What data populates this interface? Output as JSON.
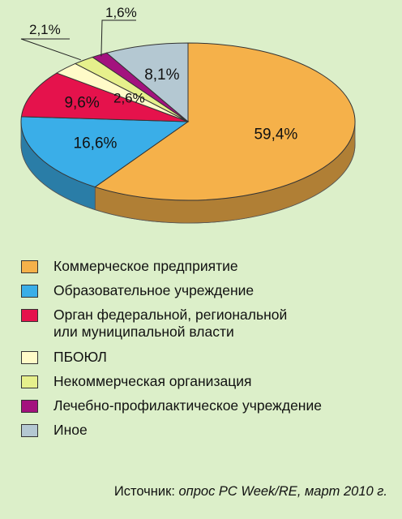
{
  "chart_data": {
    "type": "pie",
    "style": "3d",
    "slices": [
      {
        "label": "Коммерческое предприятие",
        "value": 59.4,
        "display": "59,4%",
        "color": "#f5b14a"
      },
      {
        "label": "Образовательное учреждение",
        "value": 16.6,
        "display": "16,6%",
        "color": "#3aaee8"
      },
      {
        "label": "Орган федеральной, региональной или муниципальной власти",
        "value": 9.6,
        "display": "9,6%",
        "color": "#e5124c"
      },
      {
        "label": "ПБОЮЛ",
        "value": 2.6,
        "display": "2,6%",
        "color": "#fffbc8"
      },
      {
        "label": "Некоммерческая организация",
        "value": 2.1,
        "display": "2,1%",
        "color": "#e6f08c"
      },
      {
        "label": "Лечебно-профилактическое учреждение",
        "value": 1.6,
        "display": "1,6%",
        "color": "#a3127e"
      },
      {
        "label": "Иное",
        "value": 8.1,
        "display": "8,1%",
        "color": "#b4c8d2"
      }
    ],
    "legend_placement": "bottom"
  },
  "legend": [
    {
      "lines": [
        "Коммерческое предприятие"
      ],
      "color": "#f5b14a"
    },
    {
      "lines": [
        "Образовательное учреждение"
      ],
      "color": "#3aaee8"
    },
    {
      "lines": [
        "Орган федеральной, региональной",
        "или муниципальной власти"
      ],
      "color": "#e5124c"
    },
    {
      "lines": [
        "ПБОЮЛ"
      ],
      "color": "#fffbc8"
    },
    {
      "lines": [
        "Некоммерческая организация"
      ],
      "color": "#e6f08c"
    },
    {
      "lines": [
        "Лечебно-профилактическое учреждение"
      ],
      "color": "#a3127e"
    },
    {
      "lines": [
        "Иное"
      ],
      "color": "#b4c8d2"
    }
  ],
  "source": {
    "prefix": "Источник: ",
    "text": "опрос PC Week/RE, март 2010 г."
  }
}
